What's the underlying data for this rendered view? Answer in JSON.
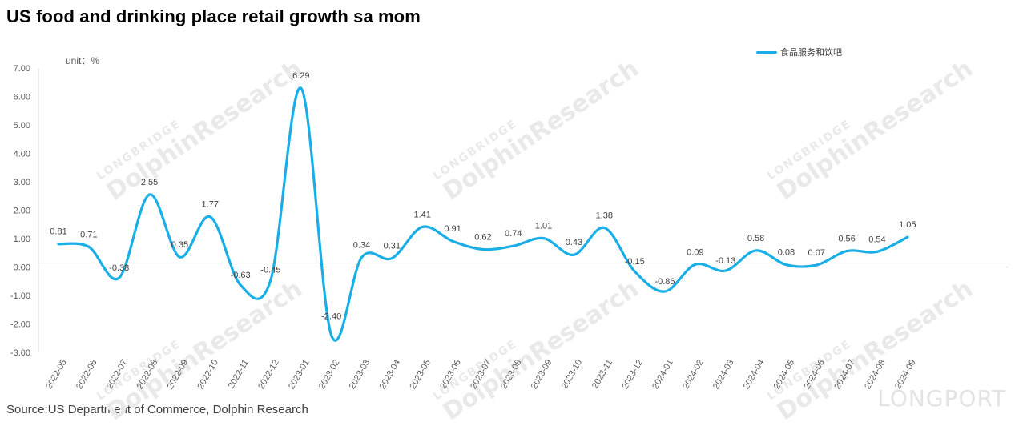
{
  "title": "US food and drinking place retail growth sa mom",
  "unit_label": "unit：%",
  "source": "Source:US Department of Commerce, Dolphin Research",
  "watermark": {
    "small": "LONGBRIDGE",
    "big": "DolphinResearch"
  },
  "brand": "LONGPORT",
  "chart_data": {
    "type": "line",
    "title": "US food and drinking place retail growth sa mom",
    "xlabel": "",
    "ylabel": "unit：%",
    "ylim": [
      -3,
      7
    ],
    "yticks": [
      "-3.00",
      "-2.00",
      "-1.00",
      "0.00",
      "1.00",
      "2.00",
      "3.00",
      "4.00",
      "5.00",
      "6.00",
      "7.00"
    ],
    "legend_position": "top-right",
    "grid": false,
    "categories": [
      "2022-05",
      "2022-06",
      "2022-07",
      "2022-08",
      "2022-09",
      "2022-10",
      "2022-11",
      "2022-12",
      "2023-01",
      "2023-02",
      "2023-03",
      "2023-04",
      "2023-05",
      "2023-06",
      "2023-07",
      "2023-08",
      "2023-09",
      "2023-10",
      "2023-11",
      "2023-12",
      "2024-01",
      "2024-02",
      "2024-03",
      "2024-04",
      "2024-05",
      "2024-06",
      "2024-07",
      "2024-08",
      "2024-09"
    ],
    "series": [
      {
        "name": "食品服务和饮吧",
        "color": "#1aaee6",
        "values": [
          0.81,
          0.71,
          -0.38,
          2.55,
          0.35,
          1.77,
          -0.63,
          -0.45,
          6.29,
          -2.4,
          0.34,
          0.31,
          1.41,
          0.91,
          0.62,
          0.74,
          1.01,
          0.43,
          1.38,
          -0.15,
          -0.86,
          0.09,
          -0.13,
          0.58,
          0.08,
          0.07,
          0.56,
          0.54,
          1.05
        ],
        "labels": [
          "0.81",
          "0.71",
          "-0.38",
          "2.55",
          "0.35",
          "1.77",
          "-0.63",
          "-0.45",
          "6.29",
          "-2.40",
          "0.34",
          "0.31",
          "1.41",
          "0.91",
          "0.62",
          "0.74",
          "1.01",
          "0.43",
          "1.38",
          "-0.15",
          "-0.86",
          "0.09",
          "-0.13",
          "0.58",
          "0.08",
          "0.07",
          "0.56",
          "0.54",
          "1.05"
        ]
      }
    ]
  }
}
